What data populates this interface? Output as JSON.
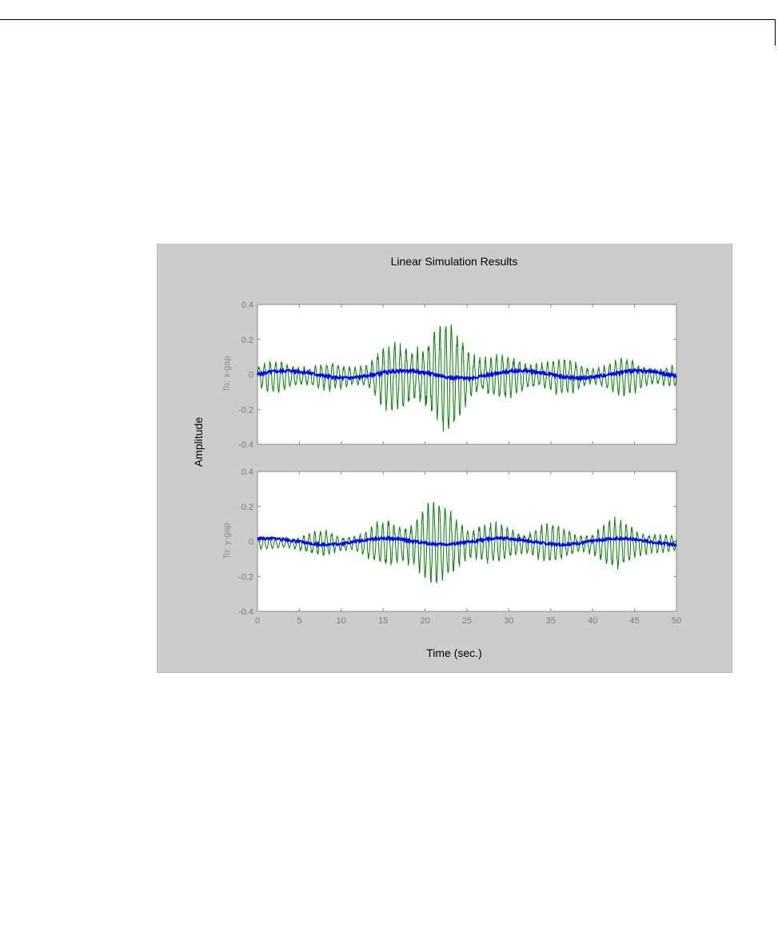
{
  "chart_data": {
    "type": "line",
    "title": "Linear Simulation Results",
    "xlabel": "Time (sec.)",
    "ylabel": "Amplitude",
    "xlim": [
      0,
      50
    ],
    "xticks": [
      "0",
      "5",
      "10",
      "15",
      "20",
      "25",
      "30",
      "35",
      "40",
      "45",
      "50"
    ],
    "ylim": [
      -0.4,
      0.4
    ],
    "yticks": [
      "-0.4",
      "-0.2",
      "0",
      "0.2",
      "0.4"
    ],
    "grid": false,
    "colors": {
      "open_loop": "#008000",
      "closed_loop": "#0000ff"
    },
    "panels": [
      {
        "label": "To: x-gap",
        "envelope_x": [
          0,
          2,
          5,
          8,
          10,
          13,
          15,
          17,
          19,
          21,
          22,
          23,
          25,
          27,
          30,
          33,
          36,
          40,
          43,
          45,
          48,
          50
        ],
        "envelope_y": [
          0.07,
          0.09,
          0.09,
          0.07,
          0.07,
          0.1,
          0.16,
          0.2,
          0.25,
          0.29,
          0.3,
          0.3,
          0.22,
          0.15,
          0.11,
          0.11,
          0.1,
          0.08,
          0.1,
          0.1,
          0.07,
          0.06
        ],
        "closed_loop_peak": 0.03
      },
      {
        "label": "To: y-gap",
        "envelope_x": [
          0,
          3,
          5,
          8,
          10,
          13,
          15,
          17,
          19,
          21,
          23,
          25,
          28,
          31,
          34,
          37,
          40,
          42,
          44,
          46,
          48,
          50
        ],
        "envelope_y": [
          0.03,
          0.03,
          0.06,
          0.07,
          0.06,
          0.09,
          0.12,
          0.16,
          0.23,
          0.22,
          0.21,
          0.16,
          0.1,
          0.1,
          0.12,
          0.08,
          0.09,
          0.13,
          0.14,
          0.11,
          0.06,
          0.04
        ],
        "closed_loop_peak": 0.025
      }
    ]
  }
}
